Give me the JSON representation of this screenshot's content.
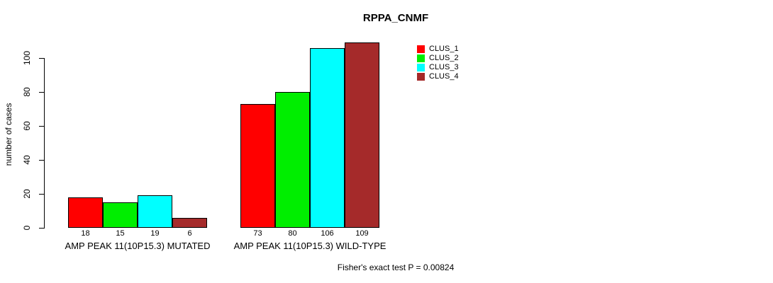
{
  "chart_data": {
    "type": "bar",
    "title": "RPPA_CNMF",
    "ylabel": "number of cases",
    "xlabel": "",
    "ylim": [
      0,
      100
    ],
    "yticks": [
      0,
      20,
      40,
      60,
      80,
      100
    ],
    "grid": false,
    "legend_position": "top-right",
    "categories": [
      "AMP PEAK 11(10P15.3) MUTATED",
      "AMP PEAK 11(10P15.3) WILD-TYPE"
    ],
    "series": [
      {
        "name": "CLUS_1",
        "color": "#FF0000",
        "values": [
          18,
          73
        ]
      },
      {
        "name": "CLUS_2",
        "color": "#00EE00",
        "values": [
          15,
          80
        ]
      },
      {
        "name": "CLUS_3",
        "color": "#00FFFF",
        "values": [
          19,
          106
        ]
      },
      {
        "name": "CLUS_4",
        "color": "#A52A2A",
        "values": [
          6,
          109
        ]
      }
    ],
    "bar_value_labels": [
      [
        18,
        15,
        19,
        6
      ],
      [
        73,
        80,
        106,
        109
      ]
    ],
    "footnote": "Fisher's exact test P = 0.00824"
  },
  "colors": {
    "axis": "#000000",
    "text": "#000000",
    "background": "#FFFFFF"
  }
}
